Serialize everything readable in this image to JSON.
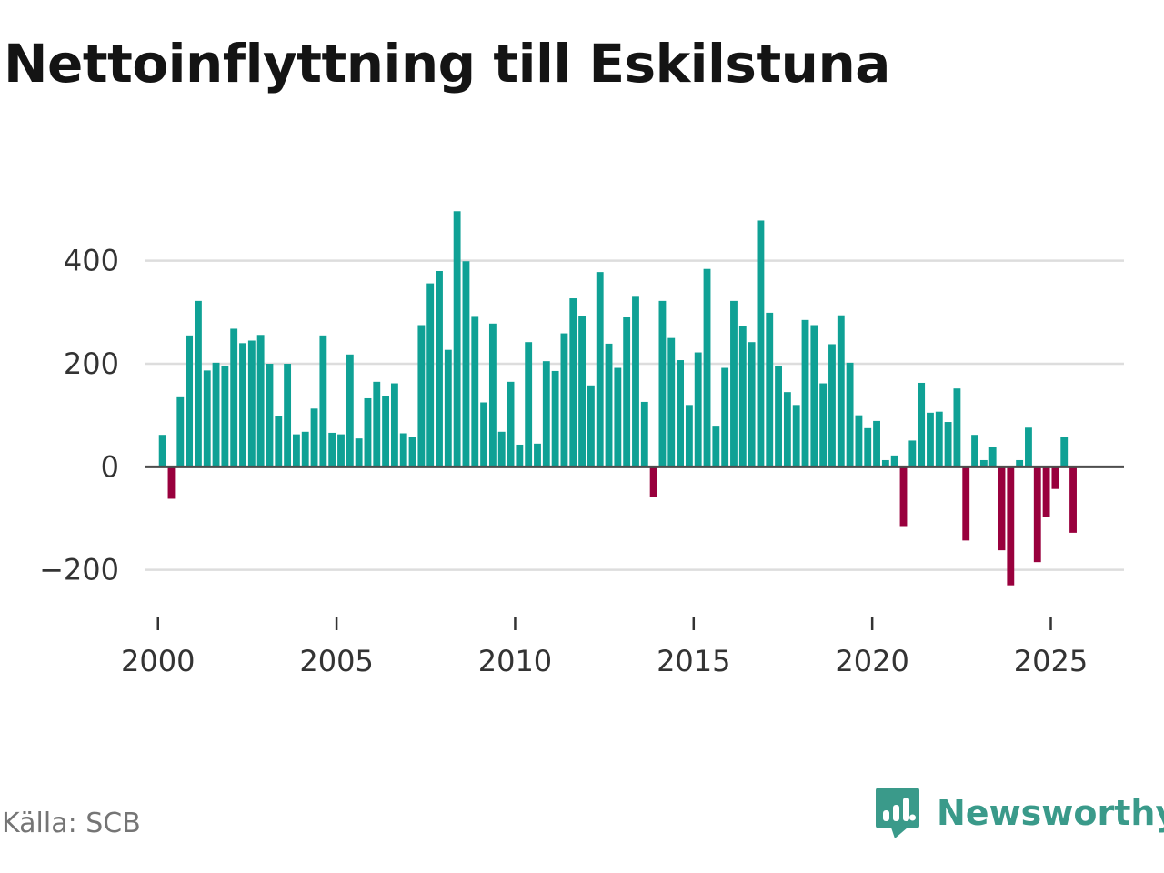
{
  "chart_data": {
    "type": "bar",
    "title": "Nettoinflyttning till Eskilstuna",
    "xlabel": "",
    "ylabel": "",
    "ylim": [
      -280,
      500
    ],
    "xlim": [
      1999.65,
      2027.05
    ],
    "grid": true,
    "legend": "none",
    "x_ticks": [
      2000,
      2005,
      2010,
      2015,
      2020,
      2025
    ],
    "y_ticks": [
      -200,
      0,
      200,
      400
    ],
    "y_tick_labels": [
      "−200",
      "0",
      "200",
      "400"
    ],
    "colors": {
      "positive": "#0fa195",
      "negative": "#99003d",
      "grid": "#dddddd",
      "zero_line": "#4d4d4d",
      "axis_ticks": "#333333"
    },
    "start_year": 2000,
    "period": "quarter",
    "values": [
      62,
      -62,
      135,
      255,
      322,
      187,
      202,
      195,
      268,
      240,
      245,
      256,
      200,
      98,
      200,
      63,
      68,
      113,
      255,
      66,
      63,
      218,
      55,
      133,
      165,
      137,
      162,
      65,
      58,
      275,
      356,
      380,
      227,
      496,
      399,
      291,
      125,
      278,
      68,
      165,
      43,
      242,
      45,
      205,
      186,
      259,
      327,
      292,
      158,
      378,
      239,
      192,
      290,
      330,
      126,
      -58,
      322,
      250,
      207,
      120,
      222,
      384,
      78,
      192,
      322,
      273,
      242,
      478,
      299,
      196,
      145,
      120,
      285,
      275,
      162,
      238,
      294,
      202,
      100,
      75,
      89,
      13,
      22,
      -115,
      51,
      163,
      105,
      107,
      87,
      152,
      -143,
      62,
      13,
      39,
      -162,
      -230,
      13,
      76,
      -185,
      -97,
      -43,
      58,
      -128
    ]
  },
  "footer": {
    "source": "Källa: SCB",
    "brand": "Newsworthy",
    "brand_color": "#3a9a8a"
  }
}
